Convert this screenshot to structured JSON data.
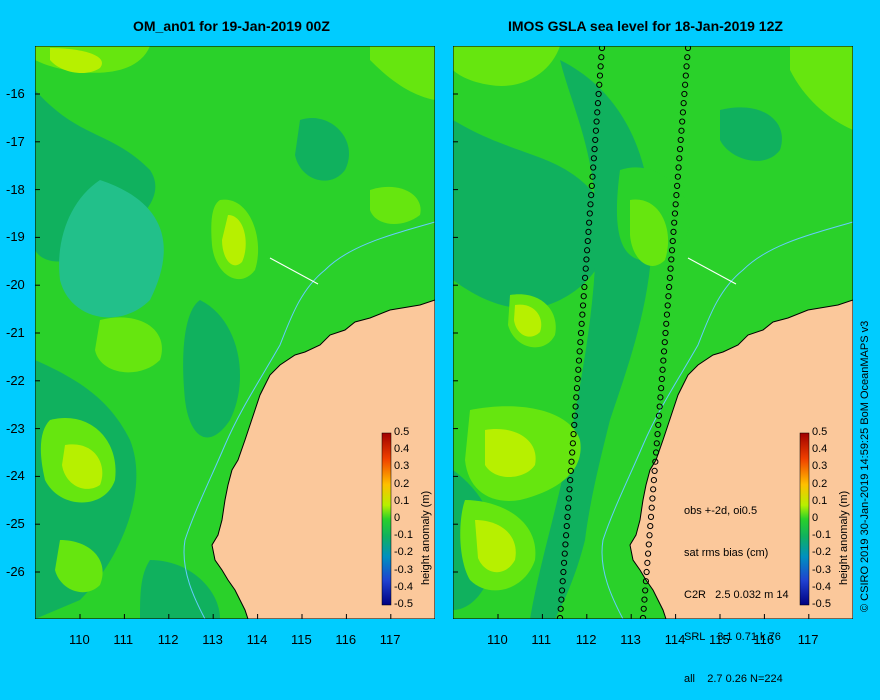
{
  "panels": [
    {
      "title": "OM_an01 for 19-Jan-2019 00Z"
    },
    {
      "title": "IMOS GSLA sea level  for 18-Jan-2019 12Z"
    }
  ],
  "axes": {
    "lat_ticks": [
      "-16",
      "-17",
      "-18",
      "-19",
      "-20",
      "-21",
      "-22",
      "-23",
      "-24",
      "-25",
      "-26"
    ],
    "lon_ticks": [
      "110",
      "111",
      "112",
      "113",
      "114",
      "115",
      "116",
      "117"
    ]
  },
  "colorbar": {
    "title": "height anomaly (m)",
    "ticks": [
      "0.5",
      "0.4",
      "0.3",
      "0.2",
      "0.1",
      "0",
      "-0.1",
      "-0.2",
      "-0.3",
      "-0.4",
      "-0.5"
    ]
  },
  "stats": {
    "lines": [
      "obs +-2d, oi0.5",
      "sat rms bias (cm)",
      "C2R   2.5 0.032 m 14",
      "SRL    3.1 0.71 k 76",
      "all    2.7 0.26 N=224"
    ]
  },
  "credit": "© CSIRO 2019   30-Jan-2019 14:59:25 BoM OceanMAPS v3",
  "colors": {
    "background": "#00ccff",
    "land": "#fbc89b",
    "sea_zero": "#2ad12a",
    "sea_positive": "#66e60f",
    "sea_high": "#b7f000",
    "sea_negative": "#10b15e"
  }
}
